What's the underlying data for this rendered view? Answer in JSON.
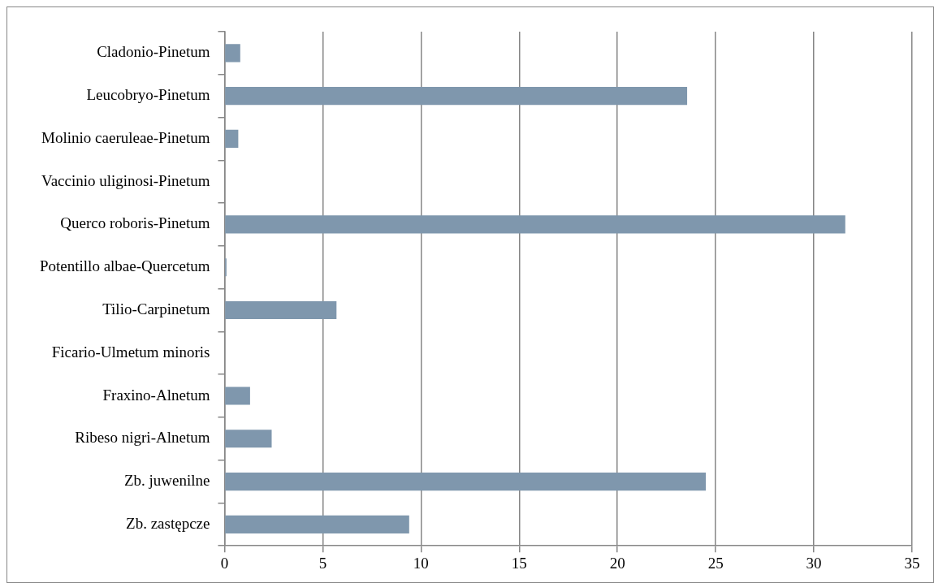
{
  "chart_data": {
    "type": "bar",
    "orientation": "horizontal",
    "categories": [
      "Cladonio-Pinetum",
      "Leucobryo-Pinetum",
      "Molinio caeruleae-Pinetum",
      "Vaccinio uliginosi-Pinetum",
      "Querco roboris-Pinetum",
      "Potentillo albae-Quercetum",
      "Tilio-Carpinetum",
      "Ficario-Ulmetum minoris",
      "Fraxino-Alnetum",
      "Ribeso nigri-Alnetum",
      "Zb. juwenilne",
      "Zb. zastępcze"
    ],
    "values": [
      0.8,
      23.55,
      0.7,
      0,
      31.6,
      0.1,
      5.7,
      0,
      1.3,
      2.4,
      24.5,
      9.4
    ],
    "color": "#7f97ad",
    "xlim": [
      0,
      35
    ],
    "xticks": [
      0,
      5,
      10,
      15,
      20,
      25,
      30,
      35
    ],
    "grid": "x",
    "legend": false
  }
}
